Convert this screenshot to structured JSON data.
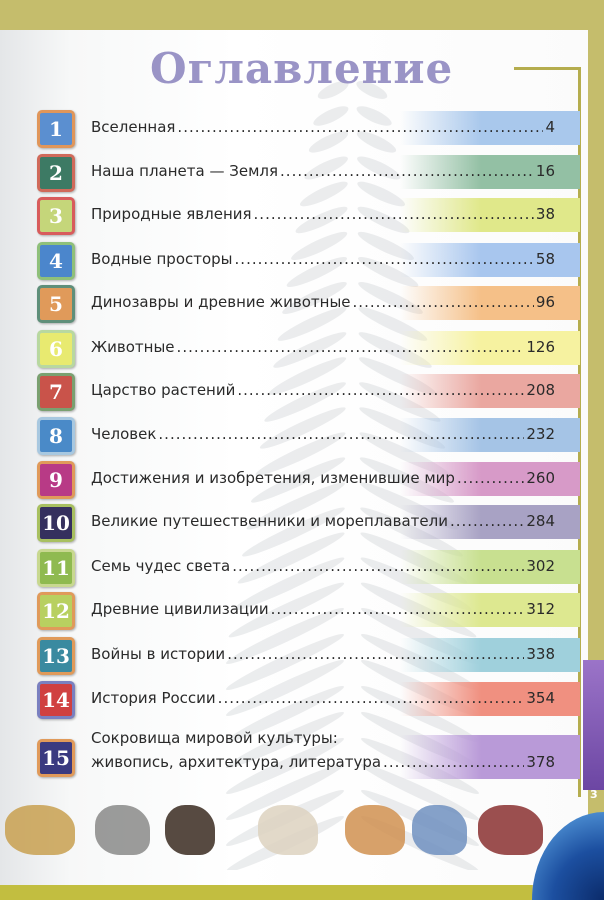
{
  "heading": "Оглавление",
  "page_number": "3",
  "items": [
    {
      "n": "1",
      "title": "Вселенная",
      "page": "4",
      "badge": "#5b8fd0",
      "border": "#e0965a",
      "band": "#a9c8ec"
    },
    {
      "n": "2",
      "title": "Наша планета — Земля",
      "page": "16",
      "badge": "#3d7a64",
      "border": "#d06a5a",
      "band": "#93c0a4"
    },
    {
      "n": "3",
      "title": "Природные явления",
      "page": "38",
      "badge": "#c5d67a",
      "border": "#d85c5c",
      "band": "#e0e88a"
    },
    {
      "n": "4",
      "title": "Водные просторы",
      "page": "58",
      "badge": "#4b86cc",
      "border": "#8fc07a",
      "band": "#a8c6ee"
    },
    {
      "n": "5",
      "title": "Динозавры и древние животные",
      "page": "96",
      "badge": "#e09a5a",
      "border": "#5f8f7a",
      "band": "#f5c088"
    },
    {
      "n": "6",
      "title": "Животные",
      "page": "126",
      "badge": "#e8ea70",
      "border": "#b8d8a0",
      "band": "#f6f2a0"
    },
    {
      "n": "7",
      "title": "Царство растений",
      "page": "208",
      "badge": "#c9534a",
      "border": "#7aa070",
      "band": "#eaa7a0"
    },
    {
      "n": "8",
      "title": "Человек",
      "page": "232",
      "badge": "#4a8ac8",
      "border": "#a8c8e0",
      "band": "#a5c4e6"
    },
    {
      "n": "9",
      "title": "Достижения и изобретения, изменившие мир",
      "page": "260",
      "badge": "#b83a86",
      "border": "#e09a5a",
      "band": "#d79ac8"
    },
    {
      "n": "10",
      "title": "Великие путешественники и мореплаватели",
      "page": "284",
      "badge": "#35305e",
      "border": "#a8c060",
      "band": "#a8a2c4"
    },
    {
      "n": "11",
      "title": "Семь чудес света",
      "page": "302",
      "badge": "#8fba50",
      "border": "#c8d890",
      "band": "#c8e090"
    },
    {
      "n": "12",
      "title": "Древние цивилизации",
      "page": "312",
      "badge": "#b8d060",
      "border": "#e09a5a",
      "band": "#dde890"
    },
    {
      "n": "13",
      "title": "Войны в истории",
      "page": "338",
      "badge": "#3a8aa0",
      "border": "#e09a5a",
      "band": "#9fd0dc"
    },
    {
      "n": "14",
      "title": "История России",
      "page": "354",
      "badge": "#d04040",
      "border": "#7a80c0",
      "band": "#f09080"
    },
    {
      "n": "15",
      "title": "Сокровища мировой культуры:",
      "title2": "живопись, архитектура, литература",
      "page": "378",
      "badge": "#3a3a80",
      "border": "#e09a5a",
      "band": "#b99ad8"
    }
  ],
  "illustrations": [
    "dinosaur",
    "elephant",
    "eagle",
    "lamassu",
    "ancient-fresco",
    "fish",
    "early-automobile"
  ]
}
